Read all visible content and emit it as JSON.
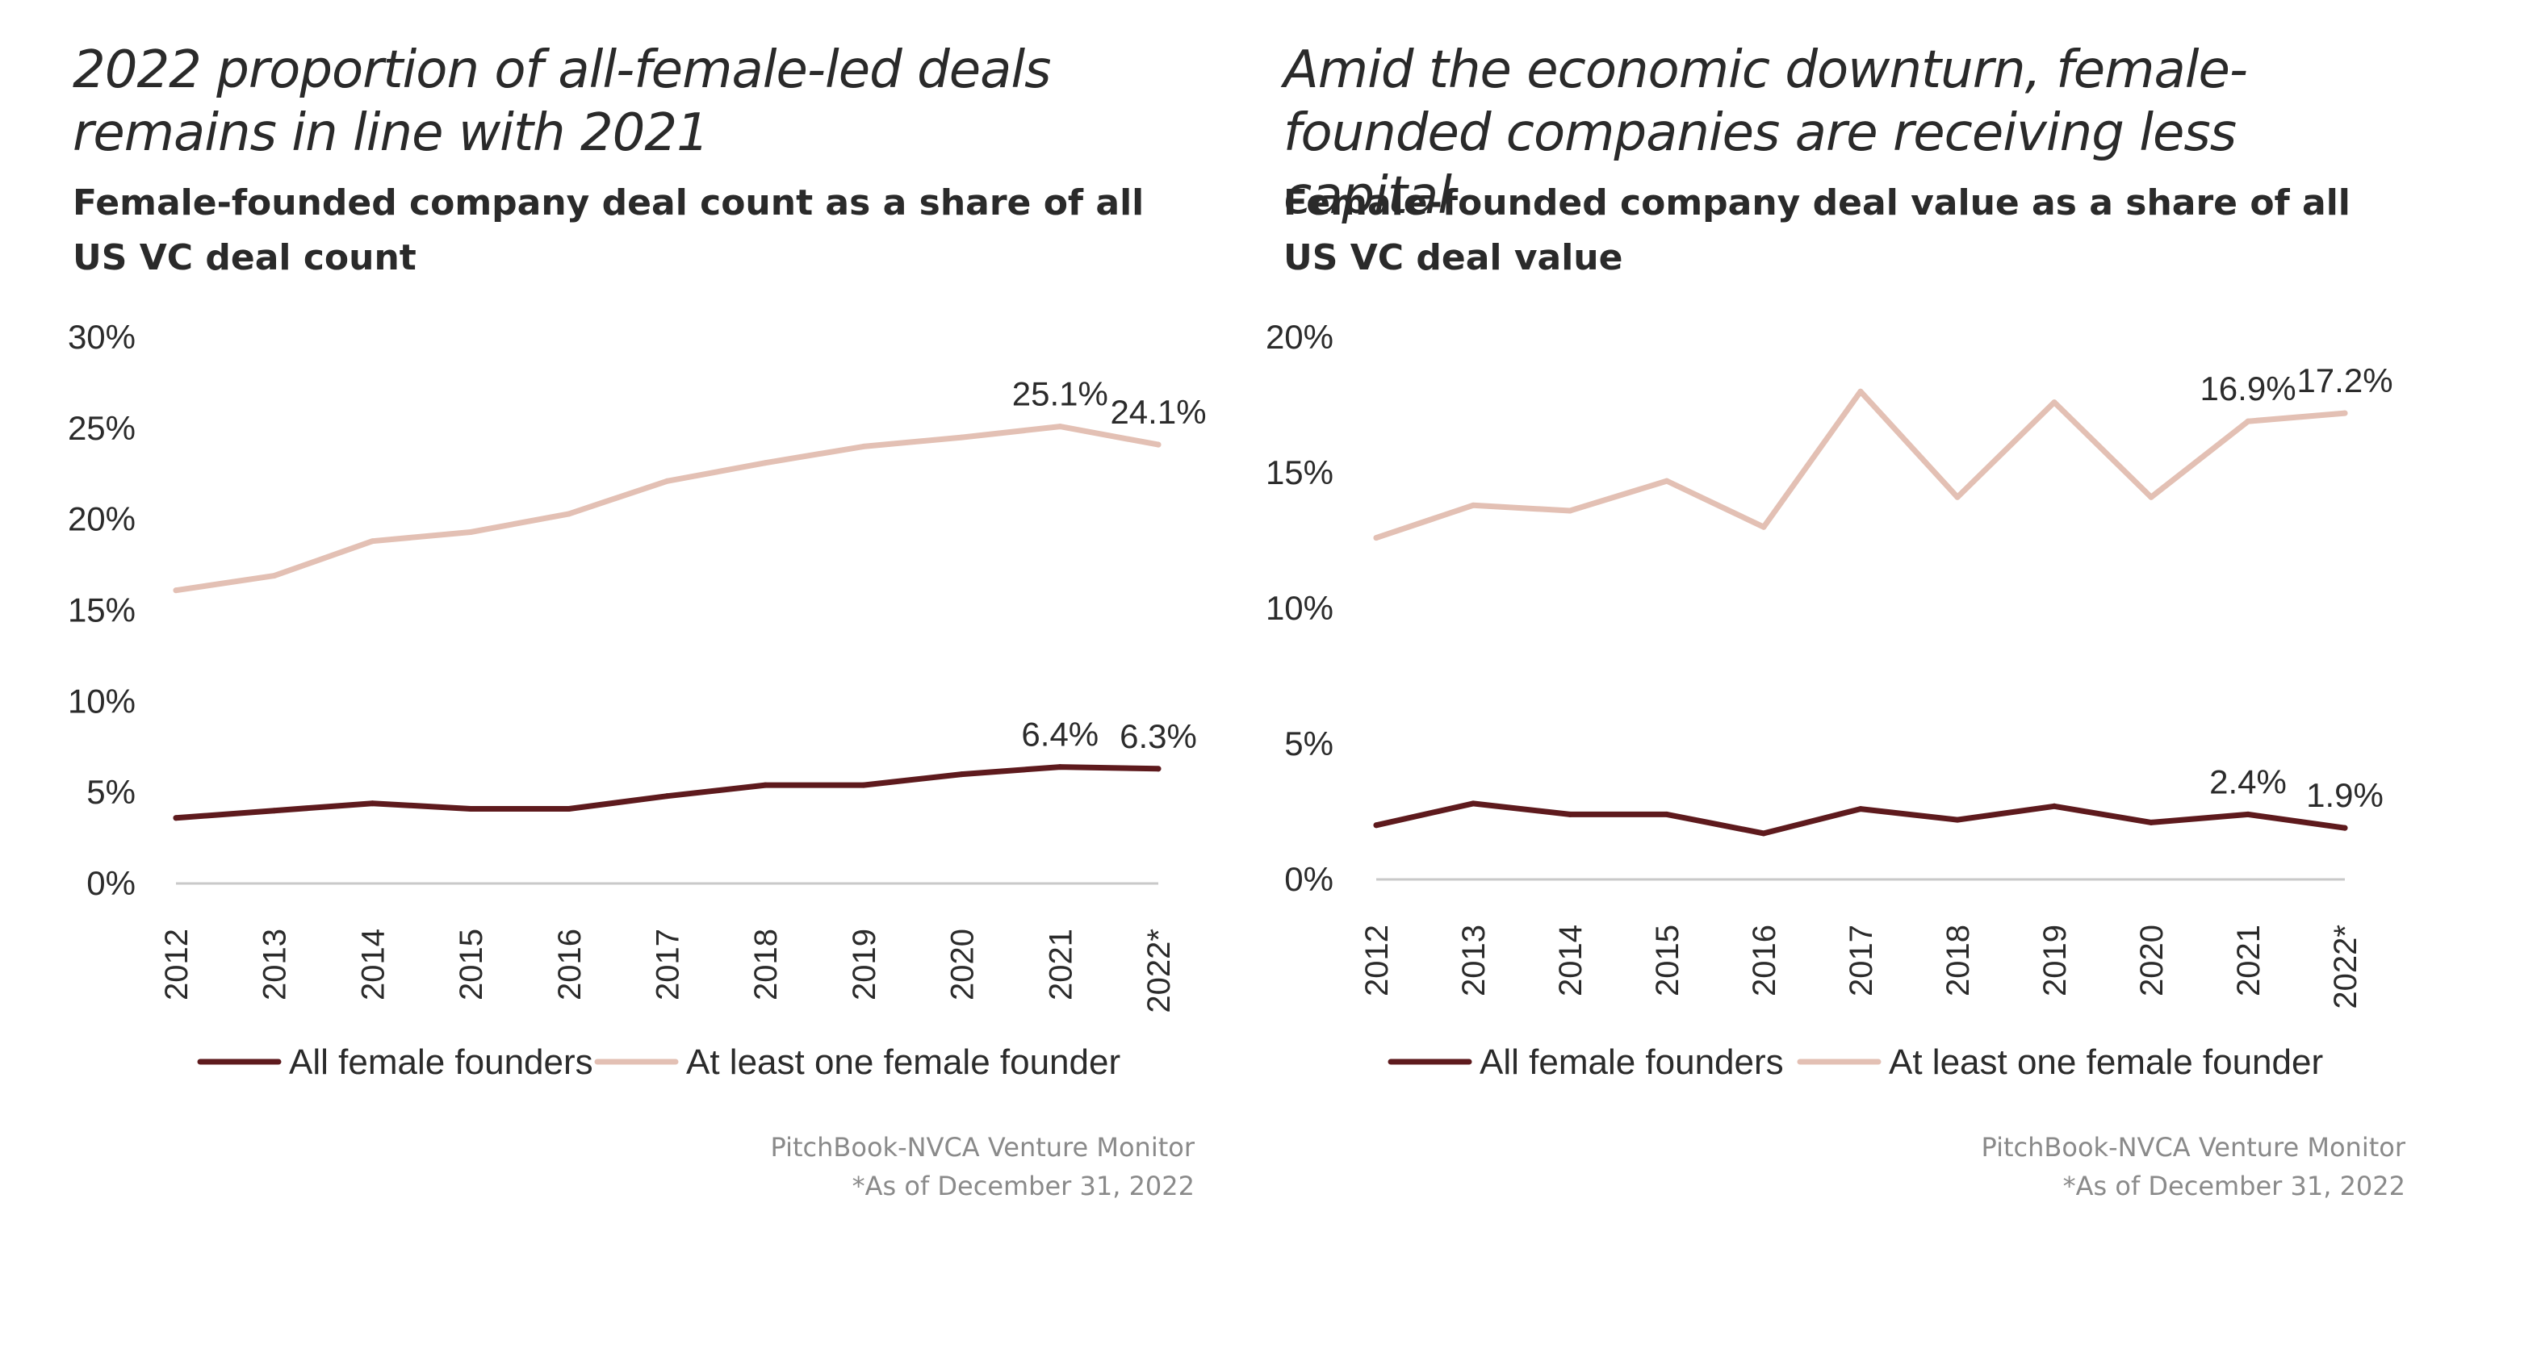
{
  "panels": [
    {
      "title": "2022 proportion of all-female-led deals remains in line with 2021",
      "subtitle": "Female-founded company deal count as a share of all US VC deal count",
      "source": "PitchBook-NVCA Venture Monitor",
      "footnote": "*As of December 31, 2022"
    },
    {
      "title": "Amid the economic downturn, female-founded companies are receiving less capital",
      "subtitle": "Female-founded company deal value as a share of all US VC deal value",
      "source": "PitchBook-NVCA Venture Monitor",
      "footnote": "*As of December 31, 2022"
    }
  ],
  "chart_data": [
    {
      "type": "line",
      "title": "2022 proportion of all-female-led deals remains in line with 2021",
      "subtitle": "Female-founded company deal count as a share of all US VC deal count",
      "categories": [
        "2012",
        "2013",
        "2014",
        "2015",
        "2016",
        "2017",
        "2018",
        "2019",
        "2020",
        "2021",
        "2022*"
      ],
      "series": [
        {
          "name": "All female founders",
          "color": "#5e1a1d",
          "values": [
            3.6,
            4.0,
            4.4,
            4.1,
            4.1,
            4.8,
            5.4,
            5.4,
            6.0,
            6.4,
            6.3
          ]
        },
        {
          "name": "At least one female founder",
          "color": "#e3c0b4",
          "values": [
            16.1,
            16.9,
            18.8,
            19.3,
            20.3,
            22.1,
            23.1,
            24.0,
            24.5,
            25.1,
            24.1
          ]
        }
      ],
      "data_labels": [
        {
          "series": 0,
          "index": 9,
          "text": "6.4%"
        },
        {
          "series": 0,
          "index": 10,
          "text": "6.3%"
        },
        {
          "series": 1,
          "index": 9,
          "text": "25.1%"
        },
        {
          "series": 1,
          "index": 10,
          "text": "24.1%"
        }
      ],
      "yticks": [
        "0%",
        "5%",
        "10%",
        "15%",
        "20%",
        "25%",
        "30%"
      ],
      "ylim": [
        0,
        30
      ],
      "grid": false,
      "legend": "bottom"
    },
    {
      "type": "line",
      "title": "Amid the economic downturn, female-founded companies are receiving less capital",
      "subtitle": "Female-founded company deal value as a share of all US VC deal value",
      "categories": [
        "2012",
        "2013",
        "2014",
        "2015",
        "2016",
        "2017",
        "2018",
        "2019",
        "2020",
        "2021",
        "2022*"
      ],
      "series": [
        {
          "name": "All female founders",
          "color": "#5e1a1d",
          "values": [
            2.0,
            2.8,
            2.4,
            2.4,
            1.7,
            2.6,
            2.2,
            2.7,
            2.1,
            2.4,
            1.9
          ]
        },
        {
          "name": "At least one female founder",
          "color": "#e3c0b4",
          "values": [
            12.6,
            13.8,
            13.6,
            14.7,
            13.0,
            18.0,
            14.1,
            17.6,
            14.1,
            16.9,
            17.2
          ]
        }
      ],
      "data_labels": [
        {
          "series": 0,
          "index": 9,
          "text": "2.4%"
        },
        {
          "series": 0,
          "index": 10,
          "text": "1.9%"
        },
        {
          "series": 1,
          "index": 9,
          "text": "16.9%"
        },
        {
          "series": 1,
          "index": 10,
          "text": "17.2%"
        }
      ],
      "yticks": [
        "0%",
        "5%",
        "10%",
        "15%",
        "20%"
      ],
      "ylim": [
        0,
        20
      ],
      "grid": false,
      "legend": "bottom"
    }
  ]
}
